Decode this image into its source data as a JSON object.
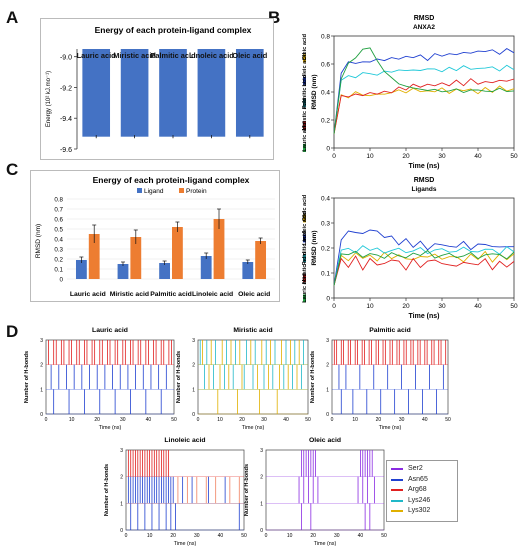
{
  "panel_letters": {
    "a": "A",
    "b": "B",
    "c": "C",
    "d": "D"
  },
  "colors": {
    "bar_blue": "#4472c4",
    "bar_orange": "#ed7d31",
    "hb_red": "#e02020",
    "hb_blue": "#2040d0",
    "hb_purple": "#8a2be2",
    "hb_cyan": "#20b8c8",
    "hb_yellow": "#e0b000",
    "hb_orange": "#f08060"
  },
  "chart_data": [
    {
      "id": "A",
      "type": "bar",
      "title": "Energy of each protein-ligand complex",
      "ylabel": "Energy (10² kJ.mo⁻¹)",
      "categories": [
        "Lauric acid",
        "Miristic acid",
        "Palmitic acid",
        "Linoleic acid",
        "Oleic acid"
      ],
      "values": [
        -9.52,
        -9.52,
        -9.52,
        -9.52,
        -9.52
      ],
      "ylim": [
        -9.6,
        -8.95
      ],
      "yticks": [
        "-9.0",
        "-9.2",
        "-9.4",
        "-9.6"
      ],
      "ytick_values": [
        -9.0,
        -9.2,
        -9.4,
        -9.6
      ],
      "errors": [
        0.01,
        0.01,
        0.01,
        0.01,
        0.01
      ]
    },
    {
      "id": "C",
      "type": "bar",
      "title": "Energy of each protein-ligand complex",
      "ylabel": "RMSD (nm)",
      "categories": [
        "Lauric acid",
        "Miristic acid",
        "Palmitic acid",
        "Linoleic acid",
        "Oleic acid"
      ],
      "series": [
        {
          "name": "Ligand",
          "values": [
            0.19,
            0.15,
            0.16,
            0.23,
            0.17
          ],
          "errors": [
            0.03,
            0.02,
            0.02,
            0.03,
            0.02
          ]
        },
        {
          "name": "Protein",
          "values": [
            0.45,
            0.42,
            0.52,
            0.6,
            0.38
          ],
          "errors": [
            0.09,
            0.07,
            0.05,
            0.1,
            0.03
          ]
        }
      ],
      "ylim": [
        0,
        0.8
      ],
      "yticks": [
        "0",
        "0.1",
        "0.2",
        "0.3",
        "0.4",
        "0.5",
        "0.6",
        "0.7",
        "0.8"
      ],
      "ytick_values": [
        0,
        0.1,
        0.2,
        0.3,
        0.4,
        0.5,
        0.6,
        0.7,
        0.8
      ],
      "legend": "top"
    },
    {
      "id": "B1",
      "type": "line",
      "title": "RMSD",
      "subtitle": "ANXA2",
      "xlabel": "Time (ns)",
      "ylabel": "RMSD (nm)",
      "xlim": [
        0,
        50
      ],
      "ylim": [
        0,
        0.8
      ],
      "xticks": [
        "0",
        "10",
        "20",
        "30",
        "40",
        "50"
      ],
      "xtick_values": [
        0,
        10,
        20,
        30,
        40,
        50
      ],
      "yticks": [
        "0",
        "0.2",
        "0.4",
        "0.6",
        "0.8"
      ],
      "ytick_values": [
        0,
        0.2,
        0.4,
        0.6,
        0.8
      ],
      "x": [
        0,
        2,
        4,
        6,
        8,
        10,
        12,
        14,
        16,
        18,
        20,
        22,
        24,
        26,
        28,
        30,
        32,
        34,
        36,
        38,
        40,
        42,
        44,
        46,
        48,
        50
      ],
      "series": [
        {
          "name": "Oleic acid",
          "color": "#e0b000",
          "values": [
            0.1,
            0.38,
            0.36,
            0.4,
            0.38,
            0.37,
            0.39,
            0.38,
            0.4,
            0.41,
            0.4,
            0.42,
            0.41,
            0.4,
            0.41,
            0.42,
            0.4,
            0.41,
            0.42,
            0.41,
            0.4,
            0.42,
            0.41,
            0.43,
            0.42,
            0.41
          ]
        },
        {
          "name": "Linoleic acid",
          "color": "#2040d0",
          "values": [
            0.1,
            0.55,
            0.6,
            0.62,
            0.6,
            0.63,
            0.62,
            0.64,
            0.63,
            0.65,
            0.64,
            0.66,
            0.65,
            0.64,
            0.66,
            0.67,
            0.66,
            0.68,
            0.67,
            0.69,
            0.68,
            0.7,
            0.69,
            0.68,
            0.7,
            0.69
          ]
        },
        {
          "name": "Palmitic acid",
          "color": "#20c8d8",
          "values": [
            0.1,
            0.48,
            0.52,
            0.5,
            0.54,
            0.53,
            0.52,
            0.55,
            0.54,
            0.56,
            0.55,
            0.56,
            0.55,
            0.57,
            0.56,
            0.55,
            0.57,
            0.56,
            0.58,
            0.57,
            0.56,
            0.58,
            0.57,
            0.56,
            0.58,
            0.57
          ]
        },
        {
          "name": "Miristic acid",
          "color": "#e02020",
          "values": [
            0.1,
            0.36,
            0.38,
            0.37,
            0.39,
            0.38,
            0.4,
            0.39,
            0.41,
            0.42,
            0.43,
            0.44,
            0.45,
            0.44,
            0.46,
            0.45,
            0.46,
            0.47,
            0.46,
            0.48,
            0.47,
            0.46,
            0.48,
            0.47,
            0.49,
            0.48
          ]
        },
        {
          "name": "Lauric acid",
          "color": "#20a040",
          "values": [
            0.1,
            0.5,
            0.6,
            0.65,
            0.7,
            0.72,
            0.62,
            0.55,
            0.5,
            0.46,
            0.44,
            0.43,
            0.42,
            0.41,
            0.42,
            0.4,
            0.41,
            0.42,
            0.4,
            0.41,
            0.42,
            0.4,
            0.41,
            0.42,
            0.41,
            0.4
          ]
        }
      ]
    },
    {
      "id": "B2",
      "type": "line",
      "title": "RMSD",
      "subtitle": "Ligands",
      "xlabel": "Time (ns)",
      "ylabel": "RMSD (nm)",
      "xlim": [
        0,
        50
      ],
      "ylim": [
        0,
        0.4
      ],
      "xticks": [
        "0",
        "10",
        "20",
        "30",
        "40",
        "50"
      ],
      "xtick_values": [
        0,
        10,
        20,
        30,
        40,
        50
      ],
      "yticks": [
        "0",
        "0.1",
        "0.2",
        "0.3",
        "0.4"
      ],
      "ytick_values": [
        0,
        0.1,
        0.2,
        0.3,
        0.4
      ],
      "x": [
        0,
        2,
        4,
        6,
        8,
        10,
        12,
        14,
        16,
        18,
        20,
        22,
        24,
        26,
        28,
        30,
        32,
        34,
        36,
        38,
        40,
        42,
        44,
        46,
        48,
        50
      ],
      "series": [
        {
          "name": "Oleic acid",
          "color": "#e0b000",
          "values": [
            0.05,
            0.17,
            0.15,
            0.18,
            0.16,
            0.17,
            0.15,
            0.18,
            0.16,
            0.17,
            0.16,
            0.15,
            0.17,
            0.16,
            0.18,
            0.15,
            0.17,
            0.16,
            0.15,
            0.17,
            0.16,
            0.18,
            0.15,
            0.17,
            0.16,
            0.17
          ]
        },
        {
          "name": "Linoleic acid",
          "color": "#2040d0",
          "values": [
            0.05,
            0.24,
            0.26,
            0.27,
            0.25,
            0.28,
            0.26,
            0.25,
            0.24,
            0.22,
            0.23,
            0.21,
            0.22,
            0.2,
            0.21,
            0.22,
            0.2,
            0.21,
            0.22,
            0.2,
            0.21,
            0.22,
            0.2,
            0.21,
            0.2,
            0.21
          ]
        },
        {
          "name": "Palmitic acid",
          "color": "#20c8d8",
          "values": [
            0.05,
            0.19,
            0.2,
            0.18,
            0.21,
            0.19,
            0.2,
            0.18,
            0.19,
            0.2,
            0.18,
            0.19,
            0.2,
            0.18,
            0.19,
            0.2,
            0.18,
            0.19,
            0.2,
            0.19,
            0.18,
            0.2,
            0.19,
            0.18,
            0.2,
            0.19
          ]
        },
        {
          "name": "Miristic acid",
          "color": "#e02020",
          "values": [
            0.05,
            0.15,
            0.13,
            0.16,
            0.12,
            0.15,
            0.14,
            0.13,
            0.16,
            0.14,
            0.12,
            0.15,
            0.13,
            0.14,
            0.16,
            0.13,
            0.14,
            0.12,
            0.15,
            0.13,
            0.14,
            0.15,
            0.12,
            0.14,
            0.13,
            0.14
          ]
        },
        {
          "name": "Lauric acid",
          "color": "#20a040",
          "values": [
            0.05,
            0.18,
            0.17,
            0.19,
            0.16,
            0.18,
            0.17,
            0.16,
            0.18,
            0.17,
            0.16,
            0.18,
            0.17,
            0.19,
            0.16,
            0.17,
            0.18,
            0.16,
            0.17,
            0.18,
            0.16,
            0.17,
            0.18,
            0.17,
            0.16,
            0.18
          ]
        }
      ]
    },
    {
      "id": "D1",
      "type": "heatmap",
      "title": "Lauric acid",
      "xlabel": "Time (ns)",
      "ylabel": "Number of H-bonds",
      "xticks": [
        "0",
        "10",
        "20",
        "30",
        "40",
        "50"
      ],
      "xtick_values": [
        0,
        10,
        20,
        30,
        40,
        50
      ],
      "yticks": [
        "0",
        "1",
        "2",
        "3"
      ],
      "ytick_values": [
        0,
        1,
        2,
        3
      ],
      "rows": [
        {
          "level": 2,
          "color": "#e02020",
          "times": [
            1,
            3,
            4,
            6,
            7,
            9,
            10,
            12,
            13,
            15,
            16,
            18,
            19,
            21,
            22,
            24,
            25,
            27,
            28,
            30,
            31,
            33,
            34,
            36,
            37,
            39,
            40,
            42,
            43,
            45,
            46,
            48,
            49
          ]
        },
        {
          "level": 1,
          "color": "#2040d0",
          "times": [
            2,
            5,
            8,
            11,
            14,
            17,
            20,
            23,
            26,
            29,
            32,
            35,
            38,
            41,
            44,
            47
          ]
        },
        {
          "level": 0,
          "color": "#2040d0",
          "times": [
            3,
            9,
            15,
            21,
            27,
            33,
            39,
            45
          ]
        }
      ]
    },
    {
      "id": "D2",
      "type": "heatmap",
      "title": "Miristic acid",
      "xlabel": "Time (ns)",
      "ylabel": "Number of H-bonds",
      "xticks": [
        "0",
        "10",
        "20",
        "30",
        "40",
        "50"
      ],
      "xtick_values": [
        0,
        10,
        20,
        30,
        40,
        50
      ],
      "yticks": [
        "0",
        "1",
        "2",
        "3"
      ],
      "ytick_values": [
        0,
        1,
        2,
        3
      ],
      "rows": [
        {
          "level": 2,
          "color": "#20b8c8",
          "times": [
            1,
            4,
            8,
            13,
            17,
            22,
            26,
            31,
            35,
            40,
            44,
            48
          ]
        },
        {
          "level": 2,
          "color": "#e0b000",
          "times": [
            2,
            6,
            11,
            15,
            19,
            24,
            29,
            33,
            38,
            42,
            46
          ]
        },
        {
          "level": 1,
          "color": "#20b8c8",
          "times": [
            3,
            7,
            12,
            16,
            21,
            25,
            30,
            34,
            39,
            43,
            47
          ]
        },
        {
          "level": 1,
          "color": "#e0b000",
          "times": [
            5,
            10,
            14,
            20,
            27,
            32,
            37,
            41,
            45
          ]
        },
        {
          "level": 0,
          "color": "#e0b000",
          "times": [
            9,
            18,
            28,
            36
          ]
        }
      ]
    },
    {
      "id": "D3",
      "type": "heatmap",
      "title": "Palmitic acid",
      "xlabel": "Time (ns)",
      "ylabel": "Number of H-bonds",
      "xticks": [
        "0",
        "10",
        "20",
        "30",
        "40",
        "50"
      ],
      "xtick_values": [
        0,
        10,
        20,
        30,
        40,
        50
      ],
      "yticks": [
        "0",
        "1",
        "2",
        "3"
      ],
      "ytick_values": [
        0,
        1,
        2,
        3
      ],
      "rows": [
        {
          "level": 2,
          "color": "#e02020",
          "times": [
            1,
            2,
            4,
            5,
            7,
            8,
            10,
            11,
            13,
            14,
            16,
            17,
            19,
            20,
            22,
            23,
            25,
            26,
            28,
            29,
            31,
            32,
            34,
            35,
            37,
            38,
            40,
            41,
            43,
            44,
            46,
            47,
            49
          ]
        },
        {
          "level": 1,
          "color": "#2040d0",
          "times": [
            3,
            6,
            12,
            18,
            24,
            30,
            36,
            42,
            48
          ]
        },
        {
          "level": 0,
          "color": "#2040d0",
          "times": [
            4,
            9,
            15,
            21,
            27,
            33,
            39,
            45
          ]
        }
      ]
    },
    {
      "id": "D4",
      "type": "heatmap",
      "title": "Linoleic acid",
      "xlabel": "Time (ns)",
      "ylabel": "Number of H-bonds",
      "xticks": [
        "0",
        "10",
        "20",
        "30",
        "40",
        "50"
      ],
      "xtick_values": [
        0,
        10,
        20,
        30,
        40,
        50
      ],
      "yticks": [
        "0",
        "1",
        "2",
        "3"
      ],
      "ytick_values": [
        0,
        1,
        2,
        3
      ],
      "rows": [
        {
          "level": 2,
          "color": "#e02020",
          "times": [
            1,
            2,
            3,
            4,
            5,
            6,
            7,
            8,
            9,
            10,
            11,
            12,
            13,
            14,
            15,
            16,
            17,
            18
          ]
        },
        {
          "level": 1,
          "color": "#2040d0",
          "times": [
            1,
            2,
            3,
            4,
            5,
            6,
            7,
            8,
            9,
            10,
            11,
            12,
            13,
            14,
            15,
            16,
            17,
            18,
            19,
            20,
            24,
            28,
            35,
            42
          ]
        },
        {
          "level": 1,
          "color": "#f08060",
          "times": [
            22,
            26,
            30,
            34,
            38,
            44,
            48
          ]
        },
        {
          "level": 0,
          "color": "#2040d0",
          "times": [
            2,
            5,
            8,
            11,
            14,
            17,
            19,
            21,
            48
          ]
        }
      ]
    },
    {
      "id": "D5",
      "type": "heatmap",
      "title": "Oleic acid",
      "xlabel": "Time (ns)",
      "ylabel": "Number of H-bonds",
      "xticks": [
        "0",
        "10",
        "20",
        "30",
        "40",
        "50"
      ],
      "xtick_values": [
        0,
        10,
        20,
        30,
        40,
        50
      ],
      "yticks": [
        "0",
        "1",
        "2",
        "3"
      ],
      "ytick_values": [
        0,
        1,
        2,
        3
      ],
      "rows": [
        {
          "level": 2,
          "color": "#8a2be2",
          "times": [
            15,
            16,
            17,
            18,
            19,
            20,
            21,
            40,
            41,
            42,
            43,
            44,
            45
          ]
        },
        {
          "level": 1,
          "color": "#8a2be2",
          "times": [
            14,
            16,
            18,
            20,
            22,
            39,
            41,
            43,
            46
          ]
        },
        {
          "level": 0,
          "color": "#8a2be2",
          "times": [
            15,
            19,
            42,
            44
          ]
        }
      ]
    }
  ],
  "hbond_legend": [
    {
      "label": "Ser2",
      "color": "#8a2be2"
    },
    {
      "label": "Asn65",
      "color": "#2040d0"
    },
    {
      "label": "Arg68",
      "color": "#e02020"
    },
    {
      "label": "Lys246",
      "color": "#20b8c8"
    },
    {
      "label": "Lys302",
      "color": "#e0b000"
    }
  ]
}
